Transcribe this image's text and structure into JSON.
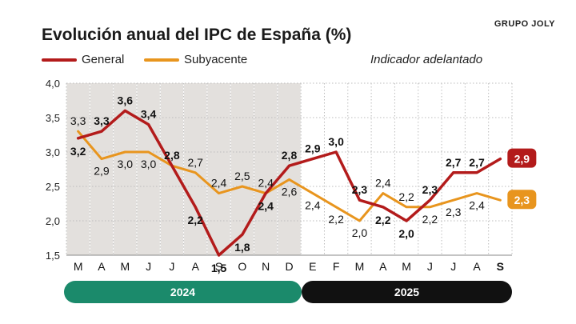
{
  "header": {
    "title": "Evolución anual del IPC de España (%)",
    "brand": "GRUPO JOLY"
  },
  "legend": {
    "general": "General",
    "subyacente": "Subyacente",
    "note": "Indicador adelantado"
  },
  "colors": {
    "general": "#b31b1b",
    "subyacente": "#e8951e",
    "shade2024": "#e3e0dd",
    "year2024": "#1b8a6b",
    "year2025": "#111111",
    "grid": "#bdbdbd"
  },
  "chart_data": {
    "type": "line",
    "title": "Evolución anual del IPC de España (%)",
    "xlabel": "",
    "ylabel": "",
    "ylim": [
      1.5,
      4.0
    ],
    "yticks": [
      1.5,
      2.0,
      2.5,
      3.0,
      3.5,
      4.0
    ],
    "ytick_labels": [
      "1,5",
      "2,0",
      "2,5",
      "3,0",
      "3,5",
      "4,0"
    ],
    "categories": [
      "M",
      "A",
      "M",
      "J",
      "J",
      "A",
      "S",
      "O",
      "N",
      "D",
      "E",
      "F",
      "M",
      "A",
      "M",
      "J",
      "J",
      "A",
      "S"
    ],
    "bold_category_index": 18,
    "shaded_until_index": 10,
    "years": [
      {
        "label": "2024",
        "from_index": 0,
        "to_index": 9
      },
      {
        "label": "2025",
        "from_index": 10,
        "to_index": 18
      }
    ],
    "series": [
      {
        "name": "General",
        "values": [
          3.2,
          3.3,
          3.6,
          3.4,
          2.8,
          2.2,
          1.5,
          1.8,
          2.4,
          2.8,
          2.9,
          3.0,
          2.3,
          2.2,
          2.0,
          2.3,
          2.7,
          2.7,
          2.9
        ],
        "labels": [
          "3,2",
          "3,3",
          "3,6",
          "3,4",
          "2,8",
          "2,2",
          "1,5",
          "1,8",
          "2,4",
          "2,8",
          "2,9",
          "3,0",
          "2,3",
          "2,2",
          "2,0",
          "2,3",
          "2,7",
          "2,7",
          "2,9"
        ]
      },
      {
        "name": "Subyacente",
        "values": [
          3.3,
          2.9,
          3.0,
          3.0,
          2.8,
          2.7,
          2.4,
          2.5,
          2.4,
          2.6,
          2.4,
          2.2,
          2.0,
          2.4,
          2.2,
          2.2,
          2.3,
          2.4,
          2.3
        ],
        "labels": [
          "3,3",
          "2,9",
          "3,0",
          "3,0",
          "",
          "2,7",
          "2,4",
          "2,5",
          "2,4",
          "2,6",
          "2,4",
          "2,2",
          "2,0",
          "2,4",
          "2,2",
          "2,2",
          "2,3",
          "2,4",
          "2,3"
        ]
      }
    ]
  }
}
